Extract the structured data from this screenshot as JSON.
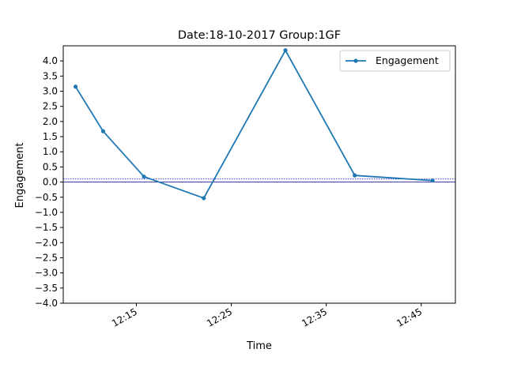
{
  "chart_data": {
    "type": "line",
    "title": "Date:18-10-2017 Group:1GF",
    "xlabel": "Time",
    "ylabel": "Engagement",
    "x_ticks": [
      "12:15",
      "12:25",
      "12:35",
      "12:45"
    ],
    "x_tick_minutes": [
      735,
      745,
      755,
      765
    ],
    "xlim_minutes": [
      727.3,
      768.6
    ],
    "ylim": [
      -4.0,
      4.5
    ],
    "y_ticks": [
      -4.0,
      -3.5,
      -3.0,
      -2.5,
      -2.0,
      -1.5,
      -1.0,
      -0.5,
      0.0,
      0.5,
      1.0,
      1.5,
      2.0,
      2.5,
      3.0,
      3.5,
      4.0
    ],
    "y_tick_labels": [
      "−4.0",
      "−3.5",
      "−3.0",
      "−2.5",
      "−2.0",
      "−1.5",
      "−1.0",
      "−0.5",
      "0.0",
      "0.5",
      "1.0",
      "1.5",
      "2.0",
      "2.5",
      "3.0",
      "3.5",
      "4.0"
    ],
    "series": [
      {
        "name": "Engagement",
        "color": "#1f77b4",
        "x_minutes": [
          728.6,
          731.5,
          735.8,
          742.1,
          750.7,
          758.0,
          766.2
        ],
        "values": [
          3.15,
          1.68,
          0.18,
          -0.53,
          4.35,
          0.22,
          0.05
        ]
      }
    ],
    "reference_lines": [
      {
        "y": 0.0,
        "color": "#000080",
        "style": "solid"
      },
      {
        "y": 0.1,
        "color": "#0000cc",
        "style": "dotted"
      }
    ],
    "legend_position": "top-right",
    "grid": false
  }
}
